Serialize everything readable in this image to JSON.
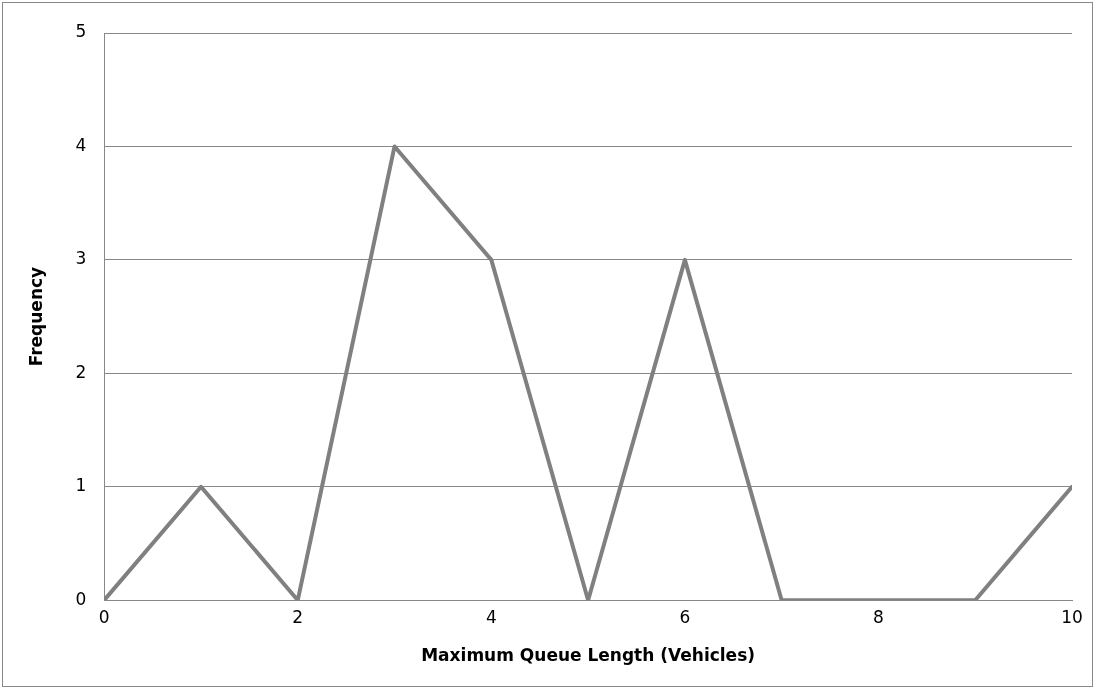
{
  "chart_data": {
    "type": "line",
    "xlabel": "Maximum Queue Length (Vehicles)",
    "ylabel": "Frequency",
    "x": [
      0,
      1,
      2,
      3,
      4,
      5,
      6,
      7,
      8,
      9,
      10
    ],
    "series": [
      {
        "color": "#808080",
        "values": [
          0,
          1,
          0,
          4,
          3,
          0,
          3,
          0,
          0,
          0,
          1
        ]
      }
    ],
    "xlim": [
      0,
      10
    ],
    "xticks": [
      0,
      2,
      4,
      6,
      8,
      10
    ],
    "ylim": [
      0,
      5
    ],
    "yticks": [
      0,
      1,
      2,
      3,
      4,
      5
    ],
    "grid": "y",
    "legend": false,
    "marker": "none",
    "line_style": "solid"
  }
}
